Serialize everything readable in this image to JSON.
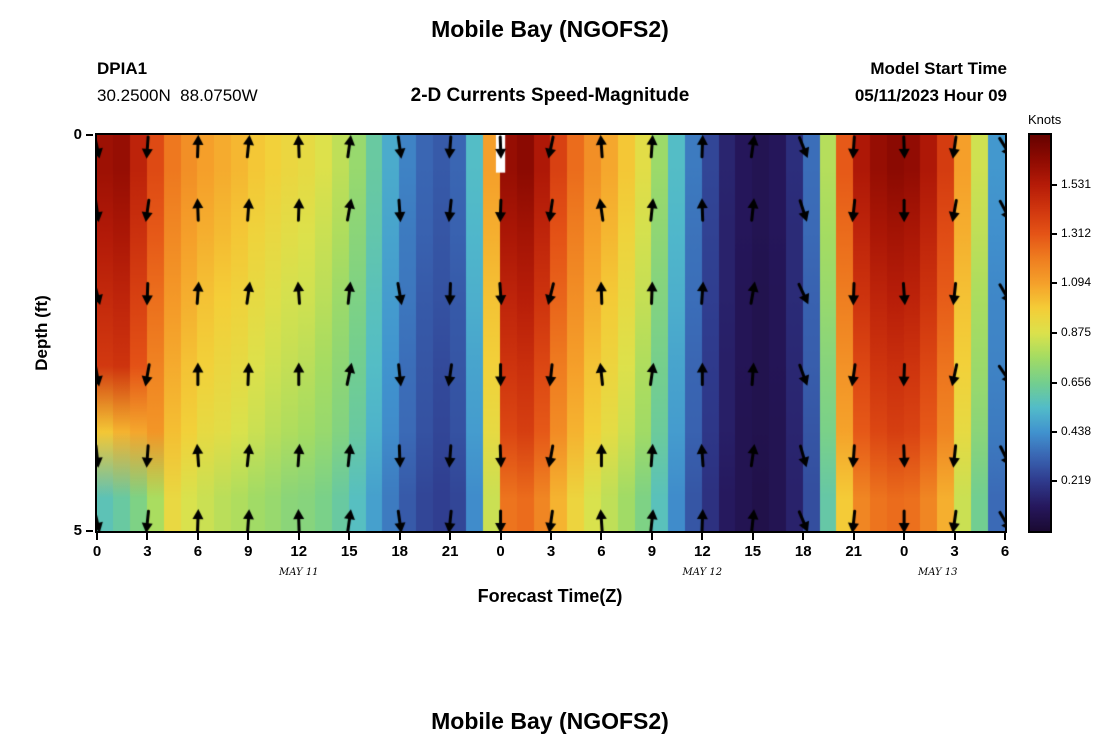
{
  "page": {
    "title_top": "Mobile Bay (NGOFS2)",
    "title_bottom": "Mobile Bay (NGOFS2)"
  },
  "header": {
    "station_id": "DPIA1",
    "station_coords": "30.2500N  88.0750W",
    "subtitle": "2-D Currents Speed-Magnitude",
    "model_start_label": "Model Start Time",
    "model_start_value": "05/11/2023 Hour 09"
  },
  "chart_data": {
    "type": "heatmap",
    "title": "Mobile Bay (NGOFS2)",
    "subtitle": "2-D Currents Speed-Magnitude",
    "xlabel": "Forecast Time(Z)",
    "ylabel": "Depth (ft)",
    "colorbar_label": "Knots",
    "value_range_knots": [
      0,
      1.75
    ],
    "depth_range_ft": [
      0,
      5
    ],
    "x_hours_range": [
      0,
      54
    ],
    "time_step_hours": 1,
    "x_tick_hours": [
      0,
      3,
      6,
      9,
      12,
      15,
      18,
      21,
      24,
      27,
      30,
      33,
      36,
      39,
      42,
      45,
      48,
      51,
      54
    ],
    "x_tick_labels": [
      "0",
      "3",
      "6",
      "9",
      "12",
      "15",
      "18",
      "21",
      "0",
      "3",
      "6",
      "9",
      "12",
      "15",
      "18",
      "21",
      "0",
      "3",
      "6"
    ],
    "date_labels": [
      {
        "text": "MAY 11",
        "hour": 12
      },
      {
        "text": "MAY 12",
        "hour": 36
      },
      {
        "text": "MAY 13",
        "hour": 50
      }
    ],
    "y_ticks": [
      {
        "label": "0",
        "depth": 0
      },
      {
        "label": "5",
        "depth": 5
      }
    ],
    "colorbar_ticks": [
      1.531,
      1.312,
      1.094,
      0.875,
      0.656,
      0.438,
      0.219
    ],
    "depths_ft": [
      0.42,
      1.25,
      2.08,
      2.92,
      3.75,
      4.58
    ],
    "speed_grid_knots": [
      [
        1.6,
        1.62,
        1.5,
        1.35,
        1.22,
        1.15,
        1.1,
        1.07,
        1.04,
        1.0,
        0.97,
        0.94,
        0.92,
        0.88,
        0.82,
        0.74,
        0.62,
        0.5,
        0.4,
        0.33,
        0.3,
        0.33,
        0.55,
        1.1,
        1.62,
        1.65,
        1.55,
        1.38,
        1.25,
        1.15,
        1.08,
        1.0,
        0.9,
        0.75,
        0.55,
        0.38,
        0.25,
        0.15,
        0.1,
        0.08,
        0.1,
        0.18,
        0.35,
        0.8,
        1.3,
        1.55,
        1.62,
        1.65,
        1.63,
        1.55,
        1.4,
        1.1,
        0.85,
        0.45
      ],
      [
        1.54,
        1.56,
        1.44,
        1.3,
        1.17,
        1.1,
        1.06,
        1.03,
        1.0,
        0.96,
        0.93,
        0.9,
        0.88,
        0.84,
        0.79,
        0.71,
        0.6,
        0.48,
        0.38,
        0.32,
        0.29,
        0.32,
        0.53,
        1.06,
        1.56,
        1.58,
        1.49,
        1.32,
        1.2,
        1.1,
        1.04,
        0.96,
        0.86,
        0.72,
        0.53,
        0.36,
        0.24,
        0.14,
        0.1,
        0.08,
        0.1,
        0.17,
        0.34,
        0.77,
        1.25,
        1.49,
        1.56,
        1.58,
        1.56,
        1.49,
        1.34,
        1.06,
        0.82,
        0.43
      ],
      [
        1.47,
        1.49,
        1.38,
        1.24,
        1.12,
        1.06,
        1.01,
        0.98,
        0.96,
        0.92,
        0.89,
        0.86,
        0.85,
        0.81,
        0.75,
        0.68,
        0.57,
        0.46,
        0.37,
        0.3,
        0.28,
        0.3,
        0.51,
        1.01,
        1.49,
        1.52,
        1.43,
        1.27,
        1.15,
        1.06,
        0.99,
        0.92,
        0.83,
        0.69,
        0.51,
        0.35,
        0.23,
        0.14,
        0.09,
        0.07,
        0.09,
        0.17,
        0.32,
        0.74,
        1.2,
        1.43,
        1.49,
        1.52,
        1.5,
        1.43,
        1.29,
        1.01,
        0.78,
        0.41
      ],
      [
        1.41,
        1.43,
        1.32,
        1.19,
        1.07,
        1.01,
        0.97,
        0.94,
        0.92,
        0.88,
        0.85,
        0.83,
        0.81,
        0.77,
        0.72,
        0.65,
        0.55,
        0.44,
        0.35,
        0.29,
        0.26,
        0.29,
        0.48,
        0.97,
        1.43,
        1.45,
        1.36,
        1.21,
        1.1,
        1.01,
        0.95,
        0.88,
        0.79,
        0.66,
        0.48,
        0.33,
        0.22,
        0.13,
        0.09,
        0.07,
        0.09,
        0.16,
        0.31,
        0.7,
        1.14,
        1.36,
        1.43,
        1.45,
        1.43,
        1.36,
        1.23,
        0.97,
        0.75,
        0.4
      ],
      [
        1.0,
        1.05,
        1.08,
        1.13,
        1.02,
        0.97,
        0.92,
        0.9,
        0.87,
        0.84,
        0.81,
        0.79,
        0.77,
        0.74,
        0.69,
        0.62,
        0.52,
        0.42,
        0.34,
        0.28,
        0.25,
        0.28,
        0.46,
        0.92,
        1.36,
        1.39,
        1.3,
        1.16,
        1.05,
        0.97,
        0.91,
        0.84,
        0.76,
        0.63,
        0.46,
        0.32,
        0.21,
        0.13,
        0.08,
        0.07,
        0.08,
        0.15,
        0.29,
        0.67,
        1.09,
        1.3,
        1.36,
        1.39,
        1.37,
        1.3,
        1.18,
        0.92,
        0.71,
        0.38
      ],
      [
        0.58,
        0.62,
        0.68,
        0.78,
        0.93,
        0.87,
        0.84,
        0.81,
        0.79,
        0.76,
        0.74,
        0.71,
        0.7,
        0.67,
        0.62,
        0.56,
        0.47,
        0.38,
        0.3,
        0.25,
        0.23,
        0.25,
        0.42,
        0.84,
        1.23,
        1.25,
        1.18,
        1.05,
        0.95,
        0.87,
        0.82,
        0.76,
        0.68,
        0.57,
        0.42,
        0.29,
        0.19,
        0.11,
        0.08,
        0.06,
        0.08,
        0.14,
        0.27,
        0.61,
        0.99,
        1.18,
        1.23,
        1.25,
        1.24,
        1.18,
        1.06,
        0.84,
        0.65,
        0.34
      ]
    ],
    "arrow_cols_hours": [
      0,
      3,
      6,
      9,
      12,
      15,
      18,
      21,
      24,
      27,
      30,
      33,
      36,
      39,
      42,
      45,
      48,
      51,
      54
    ],
    "arrow_rows_depth_frac": [
      0.03,
      0.19,
      0.4,
      0.605,
      0.81,
      0.975
    ],
    "arrow_dirs_deg": [
      [
        168,
        184,
        2,
        6,
        358,
        8,
        172,
        184,
        178,
        192,
        356,
        4,
        2,
        8,
        158,
        184,
        178,
        188,
        148
      ],
      [
        172,
        188,
        358,
        4,
        2,
        10,
        176,
        186,
        182,
        188,
        352,
        6,
        358,
        6,
        162,
        186,
        180,
        190,
        152
      ],
      [
        165,
        182,
        4,
        8,
        356,
        6,
        170,
        182,
        176,
        194,
        358,
        2,
        4,
        10,
        155,
        182,
        176,
        186,
        150
      ],
      [
        170,
        190,
        0,
        2,
        0,
        12,
        174,
        188,
        180,
        186,
        354,
        8,
        0,
        4,
        160,
        188,
        182,
        192,
        146
      ],
      [
        174,
        184,
        356,
        6,
        4,
        6,
        178,
        184,
        178,
        190,
        0,
        4,
        356,
        8,
        164,
        184,
        178,
        186,
        154
      ],
      [
        167,
        186,
        2,
        4,
        358,
        8,
        172,
        186,
        180,
        188,
        356,
        6,
        2,
        6,
        157,
        186,
        180,
        188,
        150
      ]
    ],
    "colormap_stops": [
      [
        0.0,
        "#1b0a33"
      ],
      [
        0.06,
        "#26175c"
      ],
      [
        0.125,
        "#2f3a8c"
      ],
      [
        0.19,
        "#3a67b4"
      ],
      [
        0.25,
        "#4193cf"
      ],
      [
        0.31,
        "#52bcca"
      ],
      [
        0.375,
        "#74cf8e"
      ],
      [
        0.44,
        "#a5dc62"
      ],
      [
        0.5,
        "#dce24c"
      ],
      [
        0.56,
        "#f4cf38"
      ],
      [
        0.625,
        "#f5a12b"
      ],
      [
        0.69,
        "#ef7d20"
      ],
      [
        0.75,
        "#e55417"
      ],
      [
        0.81,
        "#d1370f"
      ],
      [
        0.875,
        "#b51b08"
      ],
      [
        0.94,
        "#8d0a02"
      ],
      [
        1.0,
        "#660300"
      ]
    ],
    "missing_data_marker": {
      "hour": 24.0,
      "width_hours": 0.55,
      "top_frac": 0.0,
      "height_frac": 0.095,
      "color": "#ffffff"
    },
    "arrow_color": "#000000"
  }
}
